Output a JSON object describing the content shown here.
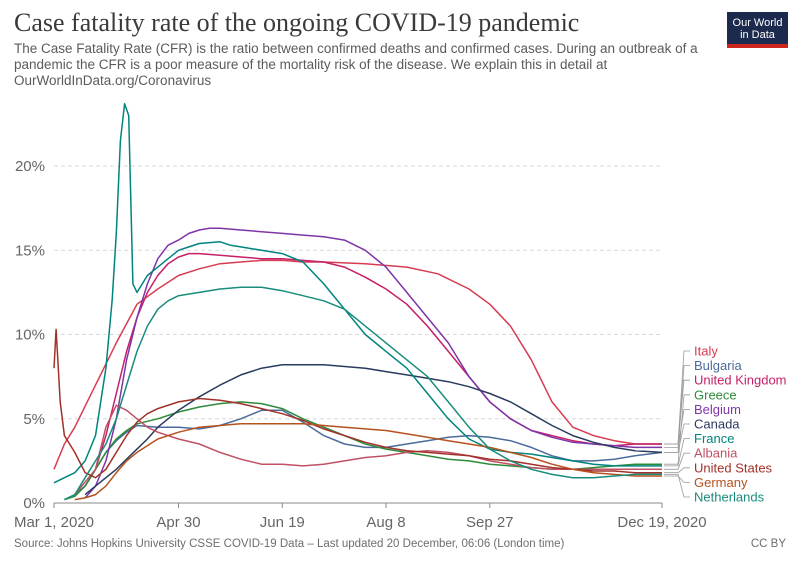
{
  "header": {
    "title": "Case fatality rate of the ongoing COVID-19 pandemic",
    "subtitle_lines": [
      "The Case Fatality Rate (CFR) is the ratio between confirmed deaths and confirmed cases. During an outbreak of a",
      "pandemic the CFR is a poor measure of the mortality risk of the disease. We explain this in detail at",
      "OurWorldInData.org/Coronavirus"
    ]
  },
  "logo": {
    "line1": "Our World",
    "line2": "in Data"
  },
  "footer": {
    "source": "Source: Johns Hopkins University CSSE COVID-19 Data – Last updated 20 December, 06:06 (London time)",
    "license": "CC BY"
  },
  "chart_data": {
    "type": "line",
    "x_unit": "days since Mar 1, 2020",
    "xlim": [
      0,
      293
    ],
    "ylim": [
      0,
      20
    ],
    "grid": "horizontal dashed",
    "x_ticks": [
      {
        "value": 0,
        "label": "Mar 1, 2020"
      },
      {
        "value": 60,
        "label": "Apr 30"
      },
      {
        "value": 110,
        "label": "Jun 19"
      },
      {
        "value": 160,
        "label": "Aug 8"
      },
      {
        "value": 210,
        "label": "Sep 27"
      },
      {
        "value": 293,
        "label": "Dec 19, 2020"
      }
    ],
    "y_ticks": [
      {
        "value": 0,
        "label": "0%"
      },
      {
        "value": 5,
        "label": "5%"
      },
      {
        "value": 10,
        "label": "10%"
      },
      {
        "value": 15,
        "label": "15%"
      },
      {
        "value": 20,
        "label": "20%"
      }
    ],
    "legend_position": "right",
    "series": [
      {
        "name": "Italy",
        "color": "#d73c50",
        "x": [
          0,
          5,
          10,
          20,
          30,
          40,
          50,
          60,
          70,
          80,
          90,
          100,
          110,
          120,
          130,
          150,
          170,
          185,
          200,
          210,
          220,
          230,
          240,
          250,
          260,
          270,
          280,
          293
        ],
        "y": [
          2.0,
          3.5,
          4.5,
          7.0,
          9.5,
          11.8,
          12.7,
          13.5,
          13.9,
          14.2,
          14.3,
          14.4,
          14.4,
          14.3,
          14.3,
          14.2,
          14.0,
          13.6,
          12.7,
          11.8,
          10.5,
          8.5,
          6.0,
          4.5,
          4.0,
          3.7,
          3.5,
          3.5
        ]
      },
      {
        "name": "Bulgaria",
        "color": "#4c6a9c",
        "x": [
          10,
          15,
          20,
          25,
          30,
          35,
          40,
          50,
          60,
          70,
          80,
          90,
          100,
          110,
          120,
          130,
          140,
          150,
          160,
          170,
          180,
          190,
          200,
          210,
          220,
          230,
          240,
          250,
          260,
          270,
          280,
          293
        ],
        "y": [
          0.5,
          1.0,
          2.0,
          3.0,
          3.7,
          4.2,
          4.6,
          4.5,
          4.5,
          4.4,
          4.6,
          5.0,
          5.5,
          5.5,
          4.8,
          4.0,
          3.5,
          3.3,
          3.3,
          3.5,
          3.7,
          3.9,
          4.0,
          3.9,
          3.7,
          3.3,
          2.8,
          2.5,
          2.5,
          2.6,
          2.8,
          3.0
        ]
      },
      {
        "name": "United Kingdom",
        "color": "#c52068",
        "x": [
          15,
          20,
          25,
          30,
          35,
          40,
          45,
          50,
          55,
          60,
          65,
          70,
          80,
          90,
          100,
          110,
          120,
          130,
          140,
          150,
          160,
          170,
          180,
          190,
          200,
          210,
          220,
          230,
          240,
          250,
          260,
          270,
          280,
          293
        ],
        "y": [
          1.0,
          2.0,
          4.0,
          6.5,
          9.0,
          11.0,
          12.5,
          13.5,
          14.2,
          14.6,
          14.8,
          14.8,
          14.7,
          14.6,
          14.5,
          14.5,
          14.4,
          14.3,
          14.0,
          13.4,
          12.7,
          11.8,
          10.5,
          9.0,
          7.5,
          6.0,
          5.0,
          4.3,
          4.0,
          3.7,
          3.5,
          3.4,
          3.5,
          3.5
        ]
      },
      {
        "name": "Greece",
        "color": "#2e8b3a",
        "x": [
          5,
          10,
          15,
          20,
          25,
          30,
          35,
          40,
          50,
          60,
          70,
          80,
          90,
          100,
          110,
          120,
          130,
          140,
          150,
          160,
          170,
          180,
          190,
          200,
          210,
          220,
          230,
          240,
          250,
          260,
          270,
          280,
          293
        ],
        "y": [
          0.2,
          0.4,
          1.0,
          2.0,
          3.0,
          3.8,
          4.3,
          4.7,
          5.0,
          5.4,
          5.7,
          5.9,
          6.0,
          5.9,
          5.6,
          5.0,
          4.5,
          4.0,
          3.5,
          3.2,
          3.0,
          2.8,
          2.6,
          2.5,
          2.3,
          2.2,
          2.1,
          2.0,
          2.0,
          2.1,
          2.2,
          2.3,
          2.3
        ]
      },
      {
        "name": "Belgium",
        "color": "#7e35a8",
        "x": [
          15,
          20,
          25,
          30,
          35,
          40,
          45,
          50,
          55,
          60,
          65,
          70,
          75,
          80,
          90,
          100,
          110,
          120,
          130,
          140,
          150,
          160,
          170,
          180,
          190,
          200,
          210,
          220,
          230,
          240,
          250,
          260,
          270,
          280,
          293
        ],
        "y": [
          0.3,
          1.0,
          2.5,
          5.0,
          8.5,
          11.0,
          13.0,
          14.5,
          15.3,
          15.6,
          16.0,
          16.2,
          16.3,
          16.3,
          16.2,
          16.1,
          16.0,
          15.9,
          15.8,
          15.6,
          15.0,
          14.0,
          12.5,
          11.0,
          9.5,
          7.5,
          6.0,
          5.0,
          4.3,
          3.9,
          3.6,
          3.5,
          3.4,
          3.3,
          3.3
        ]
      },
      {
        "name": "Canada",
        "color": "#2a3b5f",
        "x": [
          15,
          20,
          25,
          30,
          35,
          40,
          45,
          50,
          60,
          70,
          80,
          90,
          100,
          110,
          120,
          130,
          140,
          150,
          160,
          170,
          180,
          190,
          200,
          210,
          220,
          230,
          240,
          250,
          260,
          270,
          280,
          293
        ],
        "y": [
          0.5,
          1.0,
          1.5,
          2.0,
          2.6,
          3.2,
          3.8,
          4.5,
          5.5,
          6.3,
          7.0,
          7.6,
          8.0,
          8.2,
          8.2,
          8.2,
          8.1,
          8.0,
          7.8,
          7.6,
          7.4,
          7.2,
          6.9,
          6.5,
          6.0,
          5.3,
          4.6,
          4.0,
          3.6,
          3.3,
          3.1,
          3.0
        ]
      },
      {
        "name": "France",
        "color": "#00847e",
        "x": [
          0,
          5,
          10,
          15,
          20,
          25,
          28,
          30,
          32,
          34,
          36,
          38,
          40,
          45,
          50,
          55,
          60,
          65,
          70,
          80,
          85,
          90,
          100,
          110,
          120,
          130,
          140,
          150,
          160,
          170,
          180,
          190,
          200,
          210,
          220,
          230,
          240,
          250,
          260,
          270,
          280,
          293
        ],
        "y": [
          1.2,
          1.5,
          1.8,
          2.5,
          4.0,
          8.0,
          12.0,
          16.0,
          21.5,
          23.7,
          23.0,
          13.0,
          12.5,
          13.5,
          14.0,
          14.5,
          15.0,
          15.2,
          15.4,
          15.5,
          15.3,
          15.2,
          15.0,
          14.8,
          14.3,
          13.0,
          11.5,
          10.0,
          9.0,
          8.0,
          6.5,
          5.0,
          3.8,
          3.2,
          3.0,
          2.9,
          2.7,
          2.5,
          2.3,
          2.2,
          2.2,
          2.2
        ]
      },
      {
        "name": "Albania",
        "color": "#c15065",
        "x": [
          10,
          20,
          25,
          30,
          35,
          40,
          45,
          50,
          60,
          70,
          80,
          90,
          100,
          110,
          120,
          130,
          140,
          150,
          160,
          170,
          180,
          190,
          200,
          210,
          220,
          230,
          240,
          250,
          260,
          270,
          280,
          293
        ],
        "y": [
          0.5,
          2.0,
          4.5,
          5.8,
          5.5,
          5.0,
          4.5,
          4.2,
          3.8,
          3.5,
          3.0,
          2.6,
          2.3,
          2.3,
          2.2,
          2.3,
          2.5,
          2.7,
          2.8,
          3.0,
          3.1,
          3.0,
          2.8,
          2.5,
          2.3,
          2.1,
          2.0,
          2.0,
          2.0,
          2.0,
          2.0,
          2.0
        ]
      },
      {
        "name": "United States",
        "color": "#a2312a",
        "x": [
          0,
          1,
          3,
          5,
          10,
          15,
          20,
          25,
          30,
          35,
          40,
          45,
          50,
          60,
          70,
          80,
          90,
          100,
          110,
          120,
          130,
          140,
          150,
          160,
          170,
          180,
          190,
          200,
          210,
          220,
          230,
          240,
          250,
          260,
          270,
          280,
          293
        ],
        "y": [
          8.0,
          10.3,
          6.0,
          4.0,
          3.0,
          1.8,
          1.5,
          2.0,
          3.0,
          4.0,
          4.8,
          5.3,
          5.6,
          6.0,
          6.2,
          6.1,
          5.9,
          5.6,
          5.3,
          4.9,
          4.4,
          4.0,
          3.6,
          3.3,
          3.1,
          3.0,
          2.9,
          2.8,
          2.6,
          2.5,
          2.3,
          2.1,
          2.0,
          1.9,
          1.9,
          1.8,
          1.8
        ]
      },
      {
        "name": "Germany",
        "color": "#b5521d",
        "x": [
          10,
          15,
          20,
          25,
          30,
          35,
          40,
          50,
          60,
          70,
          80,
          90,
          100,
          110,
          120,
          130,
          140,
          150,
          160,
          170,
          180,
          190,
          200,
          210,
          220,
          230,
          240,
          250,
          260,
          270,
          280,
          293
        ],
        "y": [
          0.2,
          0.3,
          0.5,
          1.0,
          1.8,
          2.5,
          3.0,
          3.8,
          4.2,
          4.5,
          4.6,
          4.7,
          4.7,
          4.7,
          4.7,
          4.6,
          4.5,
          4.4,
          4.3,
          4.1,
          3.9,
          3.7,
          3.5,
          3.3,
          3.0,
          2.7,
          2.3,
          2.0,
          1.8,
          1.7,
          1.6,
          1.6
        ]
      },
      {
        "name": "Netherlands",
        "color": "#198c7c",
        "x": [
          5,
          10,
          15,
          20,
          25,
          30,
          35,
          40,
          45,
          50,
          55,
          60,
          70,
          80,
          90,
          100,
          110,
          120,
          130,
          140,
          150,
          160,
          170,
          180,
          190,
          200,
          210,
          220,
          230,
          240,
          250,
          260,
          270,
          280,
          293
        ],
        "y": [
          0.2,
          0.5,
          1.5,
          2.5,
          3.5,
          5.0,
          7.0,
          9.0,
          10.5,
          11.5,
          12.0,
          12.3,
          12.5,
          12.7,
          12.8,
          12.8,
          12.6,
          12.3,
          12.0,
          11.5,
          10.5,
          9.5,
          8.5,
          7.5,
          6.0,
          4.5,
          3.2,
          2.5,
          2.0,
          1.7,
          1.5,
          1.5,
          1.6,
          1.7,
          1.7
        ]
      }
    ]
  }
}
